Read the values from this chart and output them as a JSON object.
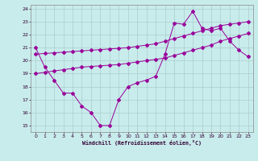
{
  "xlabel": "Windchill (Refroidissement éolien,°C)",
  "bg_color": "#c8ecec",
  "line_color": "#990099",
  "grid_color": "#aacccc",
  "xmin": 0,
  "xmax": 23,
  "ymin": 15,
  "ymax": 24,
  "yticks": [
    15,
    16,
    17,
    18,
    19,
    20,
    21,
    22,
    23,
    24
  ],
  "xticks": [
    0,
    1,
    2,
    3,
    4,
    5,
    6,
    7,
    8,
    9,
    10,
    11,
    12,
    13,
    14,
    15,
    16,
    17,
    18,
    19,
    20,
    21,
    22,
    23
  ],
  "line1_x": [
    0,
    1,
    2,
    3,
    4,
    5,
    6,
    7,
    8,
    9,
    10,
    11,
    12,
    13,
    14,
    15,
    16,
    17,
    18,
    19,
    20,
    21,
    22,
    23
  ],
  "line1_y": [
    21,
    19.5,
    18.5,
    17.5,
    17.5,
    16.5,
    16,
    15,
    15,
    17,
    18,
    18.3,
    18.5,
    18.8,
    20.5,
    22.9,
    22.8,
    23.8,
    22.5,
    22.3,
    22.5,
    21.5,
    20.8,
    20.3
  ],
  "line2_x": [
    0,
    1,
    2,
    3,
    4,
    5,
    6,
    7,
    8,
    9,
    10,
    11,
    12,
    13,
    14,
    15,
    16,
    17,
    18,
    19,
    20,
    21,
    22,
    23
  ],
  "line2_y": [
    19.0,
    19.1,
    19.2,
    19.3,
    19.4,
    19.5,
    19.55,
    19.6,
    19.65,
    19.7,
    19.8,
    19.9,
    20.0,
    20.1,
    20.2,
    20.4,
    20.6,
    20.8,
    21.0,
    21.2,
    21.5,
    21.7,
    21.9,
    22.1
  ],
  "line3_x": [
    0,
    1,
    2,
    3,
    4,
    5,
    6,
    7,
    8,
    9,
    10,
    11,
    12,
    13,
    14,
    15,
    16,
    17,
    18,
    19,
    20,
    21,
    22,
    23
  ],
  "line3_y": [
    20.5,
    20.55,
    20.6,
    20.65,
    20.7,
    20.75,
    20.8,
    20.85,
    20.9,
    20.95,
    21.0,
    21.1,
    21.2,
    21.3,
    21.5,
    21.7,
    21.9,
    22.1,
    22.3,
    22.5,
    22.7,
    22.8,
    22.9,
    23.0
  ]
}
